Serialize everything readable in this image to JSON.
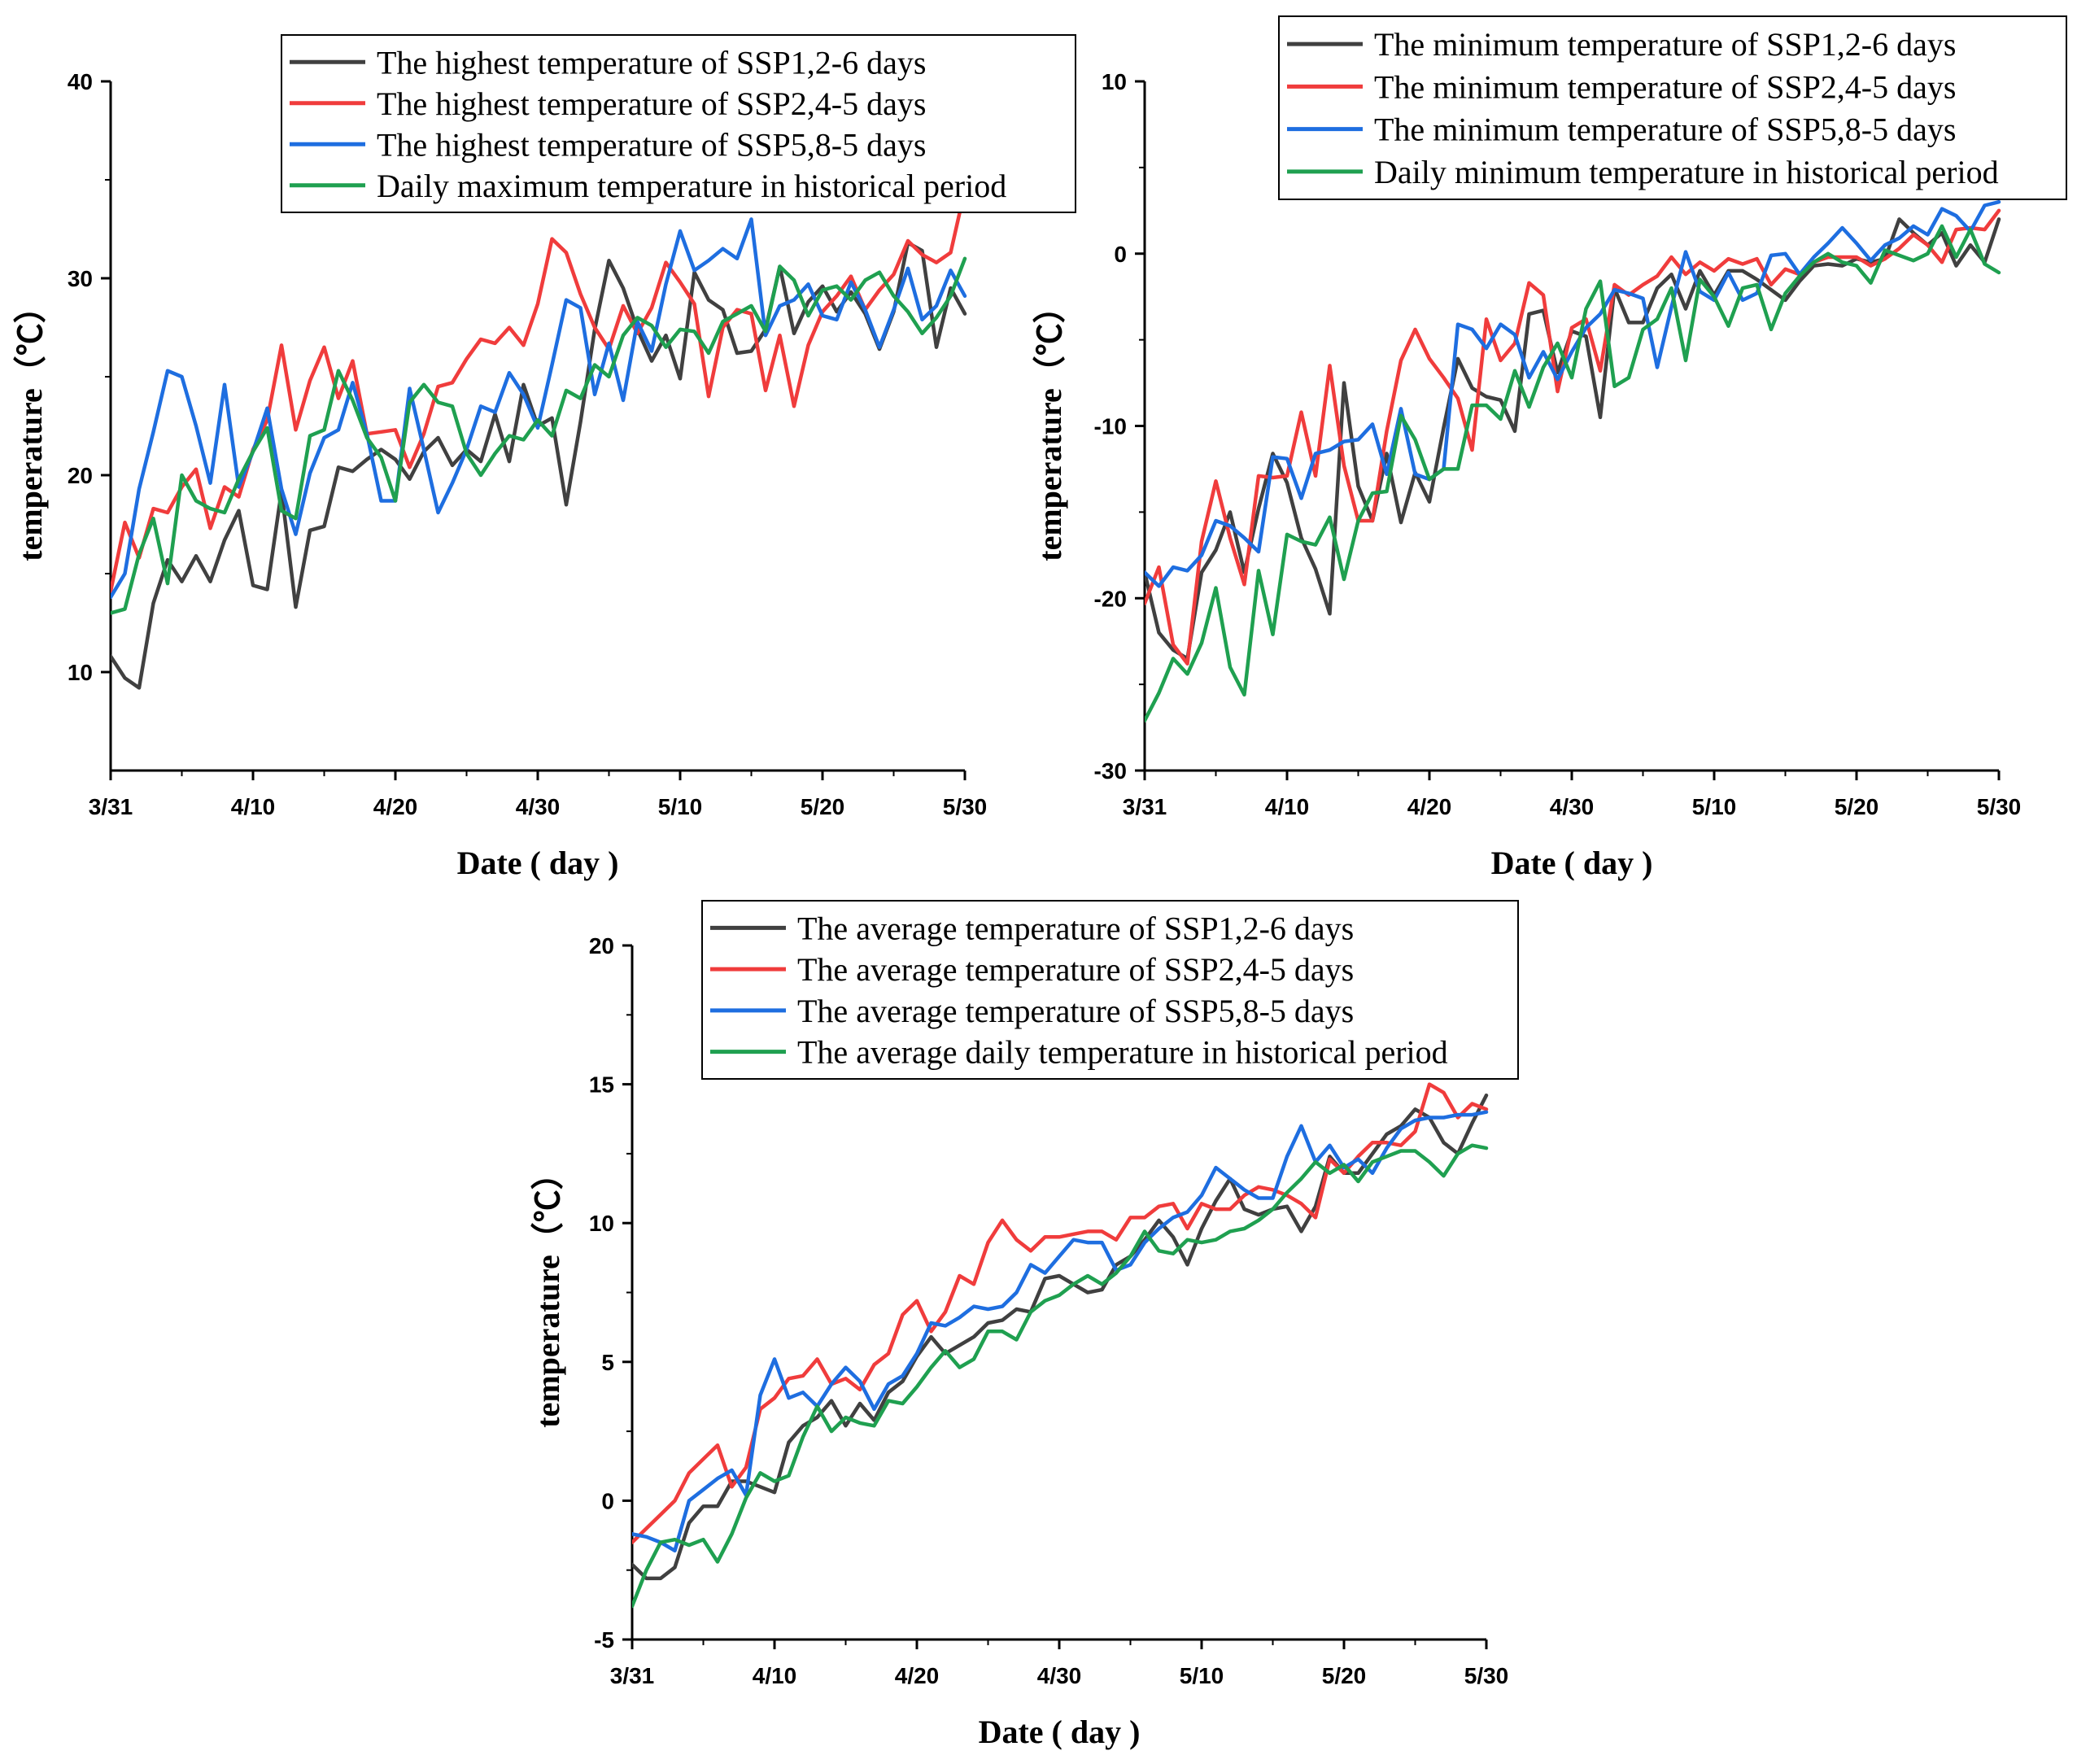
{
  "chart_data": [
    {
      "type": "line",
      "id": "max",
      "xlabel": "Date ( day )",
      "ylabel": "temperature（℃）",
      "ylim": [
        5,
        40
      ],
      "yticks": [
        10,
        20,
        30,
        40
      ],
      "xticks": [
        "3/31",
        "4/10",
        "4/20",
        "4/30",
        "5/10",
        "5/20",
        "5/30"
      ],
      "x_start_day": 0,
      "x_end_day": 60,
      "series": [
        {
          "name": "The highest temperature of SSP1,2-6 days",
          "color": "#404040",
          "values": [
            10.8,
            9.7,
            9.2,
            13.5,
            15.7,
            14.6,
            15.9,
            14.6,
            16.7,
            18.2,
            14.4,
            14.2,
            19.2,
            13.3,
            17.2,
            17.4,
            20.4,
            20.2,
            20.8,
            21.3,
            20.8,
            19.8,
            21.2,
            21.9,
            20.5,
            21.3,
            20.7,
            23.1,
            20.7,
            24.6,
            22.5,
            22.9,
            18.5,
            22.7,
            27.4,
            30.9,
            29.5,
            27.4,
            25.8,
            27.1,
            24.9,
            30.3,
            28.9,
            28.4,
            26.2,
            26.3,
            27.4,
            30.6,
            27.2,
            28.8,
            29.6,
            28.3,
            29.3,
            28.2,
            26.4,
            28.3,
            31.8,
            31.4,
            26.5,
            29.5,
            28.2
          ]
        },
        {
          "name": "The highest temperature of SSP2,4-5 days",
          "color": "#f03c3c",
          "values": [
            14.1,
            17.6,
            15.8,
            18.3,
            18.1,
            19.4,
            20.3,
            17.3,
            19.4,
            18.9,
            21.3,
            22.8,
            26.6,
            22.3,
            24.8,
            26.5,
            23.9,
            25.8,
            22.1,
            22.2,
            22.3,
            20.4,
            22.1,
            24.5,
            24.7,
            25.9,
            26.9,
            26.7,
            27.5,
            26.6,
            28.7,
            32,
            31.3,
            29.2,
            27.5,
            26.4,
            28.6,
            27.2,
            28.5,
            30.8,
            29.8,
            28.7,
            24,
            27.5,
            28.4,
            28.2,
            24.3,
            27.1,
            23.5,
            26.6,
            28.3,
            29.1,
            30.1,
            28.4,
            29.4,
            30.2,
            31.9,
            31.2,
            30.8,
            31.3,
            34.5
          ]
        },
        {
          "name": "The highest temperature of SSP5,8-5 days",
          "color": "#1e6ee0",
          "values": [
            13.8,
            15,
            19.3,
            22.2,
            25.3,
            25,
            22.5,
            19.6,
            24.6,
            19.4,
            21.2,
            23.4,
            19.3,
            17,
            20.1,
            21.9,
            22.3,
            24.7,
            22.1,
            18.7,
            18.7,
            24.4,
            21.3,
            18.1,
            19.6,
            21.3,
            23.5,
            23.2,
            25.2,
            24.1,
            22.4,
            25.6,
            28.9,
            28.5,
            24.1,
            26.7,
            23.8,
            27.8,
            26.3,
            29.7,
            32.4,
            30.4,
            30.9,
            31.5,
            31,
            33,
            27.1,
            28.6,
            28.9,
            29.7,
            28.1,
            27.9,
            29.8,
            28.4,
            26.5,
            28.4,
            30.5,
            27.9,
            28.6,
            30.4,
            29.1
          ]
        },
        {
          "name": "Daily maximum temperature in historical period",
          "color": "#1fa050",
          "values": [
            13,
            13.2,
            16,
            17.8,
            14.5,
            20,
            18.7,
            18.3,
            18.1,
            19.8,
            21.2,
            22.4,
            18.2,
            17.8,
            22,
            22.3,
            25.3,
            23.8,
            21.9,
            20.9,
            18.7,
            23.7,
            24.6,
            23.7,
            23.5,
            21.1,
            20,
            21.1,
            22,
            21.8,
            22.8,
            22,
            24.3,
            23.9,
            25.6,
            25,
            27.1,
            28,
            27.6,
            26.5,
            27.4,
            27.3,
            26.2,
            27.8,
            28.2,
            28.6,
            27.3,
            30.6,
            29.9,
            28.1,
            29.4,
            29.6,
            28.9,
            29.9,
            30.3,
            29.1,
            28.3,
            27.2,
            28,
            29.1,
            31
          ]
        }
      ]
    },
    {
      "type": "line",
      "id": "min",
      "xlabel": "Date ( day )",
      "ylabel": "temperature（℃）",
      "ylim": [
        -30,
        10
      ],
      "yticks": [
        -30,
        -20,
        -10,
        0,
        10
      ],
      "xticks": [
        "3/31",
        "4/10",
        "4/20",
        "4/30",
        "5/10",
        "5/20",
        "5/30"
      ],
      "x_start_day": 0,
      "x_end_day": 60,
      "series": [
        {
          "name": "The minimum temperature of SSP1,2-6 days",
          "color": "#404040",
          "values": [
            -18.5,
            -22,
            -23,
            -23.5,
            -18.5,
            -17.2,
            -15,
            -18.5,
            -14.8,
            -11.6,
            -13.3,
            -16.5,
            -18.3,
            -20.9,
            -7.5,
            -13.5,
            -15.5,
            -11.6,
            -15.6,
            -12.7,
            -14.4,
            -10.1,
            -6.1,
            -7.8,
            -8.3,
            -8.5,
            -10.3,
            -3.5,
            -3.3,
            -6.9,
            -4.5,
            -4.8,
            -9.5,
            -2,
            -4,
            -4,
            -2,
            -1.2,
            -3.2,
            -1,
            -2.4,
            -1,
            -1,
            -1.5,
            -2.1,
            -2.7,
            -1.6,
            -0.7,
            -0.6,
            -0.7,
            -0.3,
            -0.5,
            -0.3,
            2,
            1.2,
            0.5,
            1.2,
            -0.7,
            0.5,
            -0.5,
            2
          ]
        },
        {
          "name": "The minimum temperature of SSP2,4-5 days",
          "color": "#f03c3c",
          "values": [
            -20.3,
            -18.2,
            -22.7,
            -23.8,
            -16.7,
            -13.2,
            -16.5,
            -19.2,
            -12.9,
            -13,
            -12.9,
            -9.2,
            -12.9,
            -6.5,
            -12.3,
            -15.5,
            -15.5,
            -10.3,
            -6.2,
            -4.4,
            -6.1,
            -7.2,
            -8.4,
            -11.4,
            -3.8,
            -6.2,
            -5.2,
            -1.7,
            -2.4,
            -8,
            -4.3,
            -3.8,
            -6.8,
            -1.8,
            -2.4,
            -1.8,
            -1.3,
            -0.2,
            -1.2,
            -0.5,
            -1,
            -0.3,
            -0.6,
            -0.3,
            -1.8,
            -0.9,
            -1.2,
            -0.5,
            -0.2,
            -0.2,
            -0.2,
            -0.7,
            -0.3,
            0.3,
            1.1,
            0.5,
            -0.5,
            1.4,
            1.5,
            1.4,
            2.5
          ]
        },
        {
          "name": "The minimum temperature of SSP5,8-5 days",
          "color": "#1e6ee0",
          "values": [
            -18.5,
            -19.3,
            -18.2,
            -18.4,
            -17.5,
            -15.5,
            -15.8,
            -16.5,
            -17.3,
            -11.8,
            -11.9,
            -14.2,
            -11.6,
            -11.4,
            -10.9,
            -10.8,
            -9.9,
            -12.8,
            -9,
            -12.8,
            -13.1,
            -12.5,
            -4.1,
            -4.4,
            -5.5,
            -4.1,
            -4.7,
            -7.2,
            -5.7,
            -7.3,
            -5.7,
            -4.3,
            -3.5,
            -2.1,
            -2.3,
            -2.6,
            -6.6,
            -3.1,
            0.1,
            -2.2,
            -2.7,
            -1.1,
            -2.7,
            -2.3,
            -0.1,
            0,
            -1.2,
            -0.2,
            0.6,
            1.5,
            0.6,
            -0.4,
            0.5,
            0.9,
            1.6,
            1.1,
            2.6,
            2.2,
            1.3,
            2.8,
            3
          ]
        },
        {
          "name": "Daily minimum temperature in historical period",
          "color": "#1fa050",
          "values": [
            -27.1,
            -25.5,
            -23.5,
            -24.4,
            -22.6,
            -19.4,
            -24,
            -25.6,
            -18.4,
            -22.1,
            -16.3,
            -16.7,
            -16.9,
            -15.3,
            -18.9,
            -15.5,
            -13.9,
            -13.8,
            -9.4,
            -10.8,
            -13.1,
            -12.5,
            -12.5,
            -8.8,
            -8.8,
            -9.6,
            -6.8,
            -8.9,
            -6.6,
            -5.2,
            -7.2,
            -3.2,
            -1.6,
            -7.7,
            -7.2,
            -4.4,
            -3.8,
            -2,
            -6.2,
            -1.5,
            -2.5,
            -4.2,
            -2,
            -1.8,
            -4.4,
            -2.3,
            -1.3,
            -0.5,
            0,
            -0.5,
            -0.7,
            -1.7,
            0.2,
            -0.1,
            -0.4,
            0,
            1.6,
            -0.2,
            1.4,
            -0.6,
            -1.1
          ]
        }
      ]
    },
    {
      "type": "line",
      "id": "avg",
      "xlabel": "Date ( day )",
      "ylabel": "temperature（℃）",
      "ylim": [
        -5,
        20
      ],
      "yticks": [
        -5,
        0,
        5,
        10,
        15,
        20
      ],
      "xticks": [
        "3/31",
        "4/10",
        "4/20",
        "4/30",
        "5/10",
        "5/20",
        "5/30"
      ],
      "x_start_day": 0,
      "x_end_day": 60,
      "series": [
        {
          "name": "The average temperature of SSP1,2-6 days",
          "color": "#404040",
          "values": [
            -2.3,
            -2.8,
            -2.8,
            -2.4,
            -0.8,
            -0.2,
            -0.2,
            0.7,
            0.7,
            0.5,
            0.3,
            2.1,
            2.7,
            3,
            3.6,
            2.7,
            3.5,
            2.9,
            3.9,
            4.3,
            5.2,
            5.9,
            5.3,
            5.6,
            5.9,
            6.4,
            6.5,
            6.9,
            6.8,
            8,
            8.1,
            7.8,
            7.5,
            7.6,
            8.5,
            8.8,
            9.4,
            10.1,
            9.5,
            8.5,
            9.8,
            10.8,
            11.6,
            10.5,
            10.3,
            10.5,
            10.6,
            9.7,
            10.6,
            12.4,
            11.8,
            11.8,
            12.5,
            13.2,
            13.5,
            14.1,
            13.8,
            12.9,
            12.5,
            13.6,
            14.6
          ]
        },
        {
          "name": "The average temperature of SSP2,4-5 days",
          "color": "#f03c3c",
          "values": [
            -1.5,
            -1,
            -0.5,
            0,
            1,
            1.5,
            2,
            0.5,
            1.2,
            3.3,
            3.7,
            4.4,
            4.5,
            5.1,
            4.2,
            4.4,
            4,
            4.9,
            5.3,
            6.7,
            7.2,
            6.1,
            6.8,
            8.1,
            7.8,
            9.3,
            10.1,
            9.4,
            9,
            9.5,
            9.5,
            9.6,
            9.7,
            9.7,
            9.4,
            10.2,
            10.2,
            10.6,
            10.7,
            9.8,
            10.7,
            10.5,
            10.5,
            11,
            11.3,
            11.2,
            11,
            10.7,
            10.2,
            12.3,
            11.8,
            12.4,
            12.9,
            12.9,
            12.8,
            13.3,
            15,
            14.7,
            13.8,
            14.3,
            14.1
          ]
        },
        {
          "name": "The average temperature of SSP5,8-5 days",
          "color": "#1e6ee0",
          "values": [
            -1.2,
            -1.3,
            -1.5,
            -1.8,
            0,
            0.4,
            0.8,
            1.1,
            0.2,
            3.8,
            5.1,
            3.7,
            3.9,
            3.4,
            4.2,
            4.8,
            4.3,
            3.3,
            4.2,
            4.5,
            5.3,
            6.4,
            6.3,
            6.6,
            7,
            6.9,
            7,
            7.5,
            8.5,
            8.2,
            8.8,
            9.4,
            9.3,
            9.3,
            8.3,
            8.5,
            9.3,
            9.8,
            10.2,
            10.4,
            11,
            12,
            11.6,
            11.2,
            10.9,
            10.9,
            12.4,
            13.5,
            12.2,
            12.8,
            12,
            12.3,
            11.8,
            12.7,
            13.4,
            13.7,
            13.8,
            13.8,
            13.9,
            13.9,
            14
          ]
        },
        {
          "name": "The average daily temperature in historical period",
          "color": "#1fa050",
          "values": [
            -3.8,
            -2.5,
            -1.5,
            -1.4,
            -1.6,
            -1.4,
            -2.2,
            -1.2,
            0.1,
            1,
            0.7,
            0.9,
            2.3,
            3.4,
            2.5,
            3,
            2.8,
            2.7,
            3.6,
            3.5,
            4.1,
            4.8,
            5.4,
            4.8,
            5.1,
            6.1,
            6.1,
            5.8,
            6.8,
            7.2,
            7.4,
            7.8,
            8.1,
            7.8,
            8.2,
            8.8,
            9.7,
            9,
            8.9,
            9.4,
            9.3,
            9.4,
            9.7,
            9.8,
            10.1,
            10.5,
            11.1,
            11.6,
            12.2,
            11.8,
            12.1,
            11.5,
            12.2,
            12.4,
            12.6,
            12.6,
            12.2,
            11.7,
            12.5,
            12.8,
            12.7
          ]
        }
      ]
    }
  ]
}
